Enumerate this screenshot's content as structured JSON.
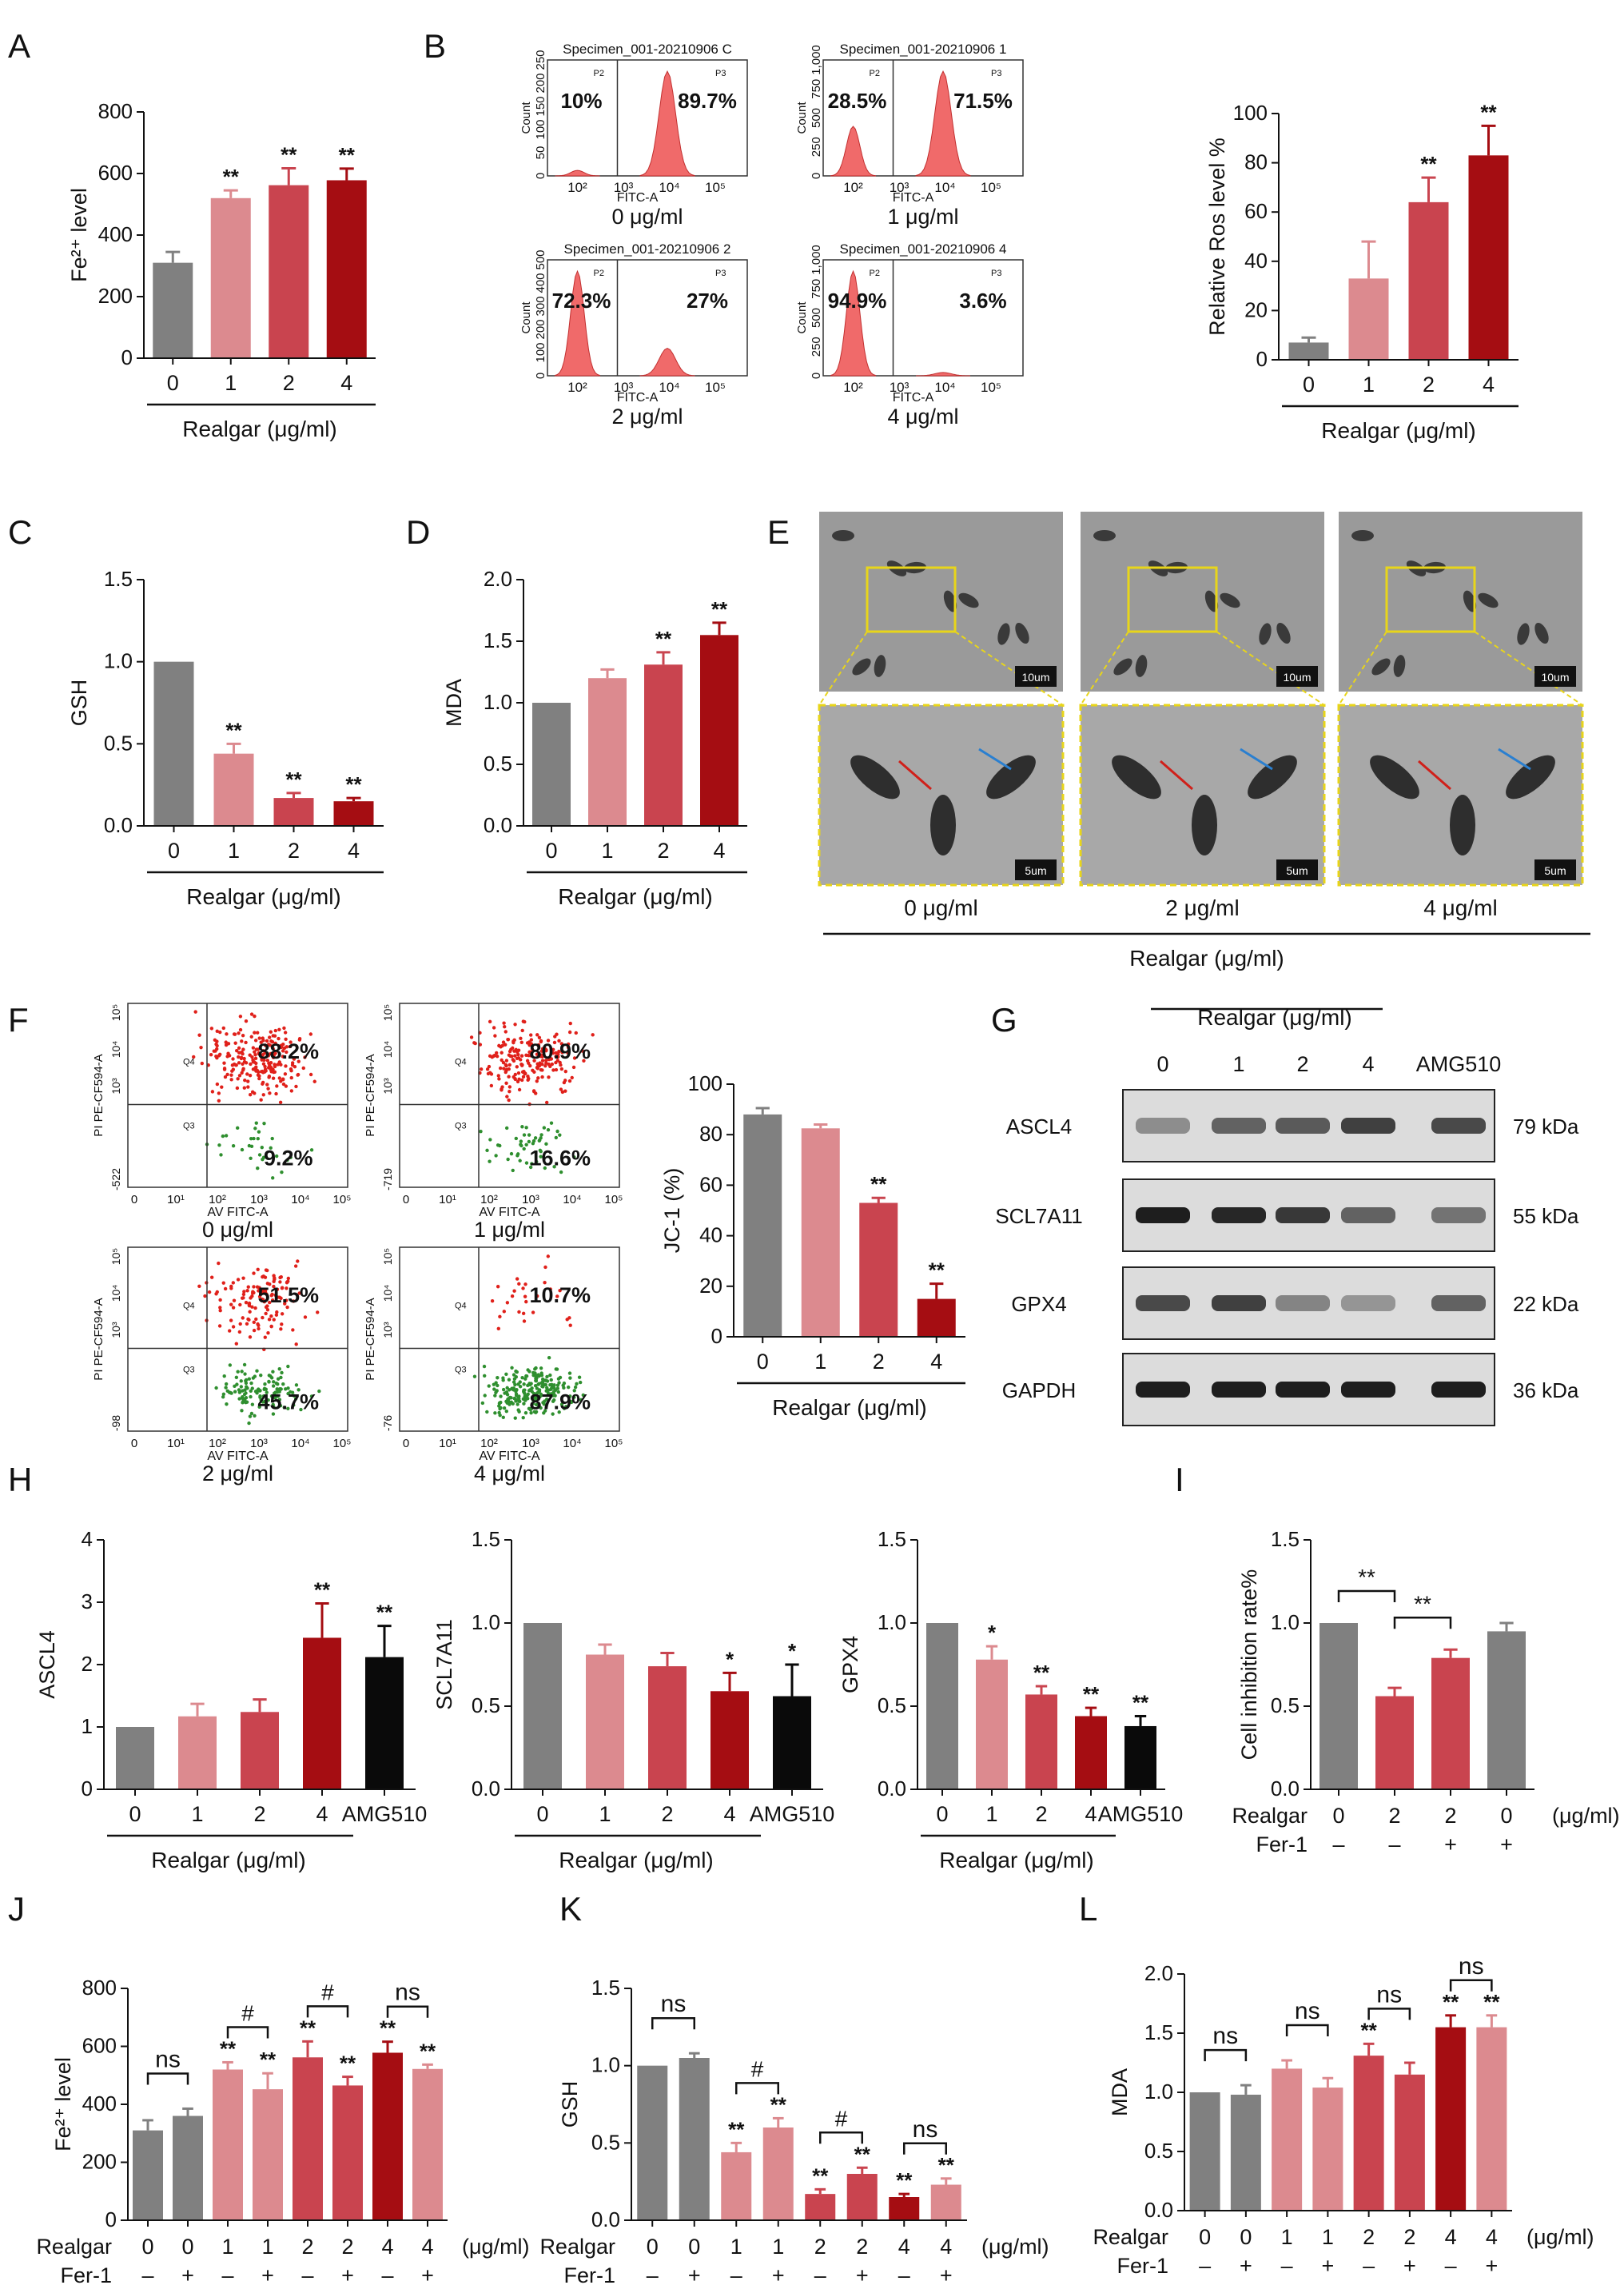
{
  "colors": {
    "c0": "#808080",
    "c1": "#dc8a8f",
    "c2": "#c9444f",
    "c4": "#a50d12",
    "amg": "#0a0a0a",
    "flow": "#f06a6a",
    "red_dot": "#e0201a",
    "green_dot": "#2f8f2f",
    "em_box": "#e8d51a"
  },
  "panel_letters": [
    "A",
    "B",
    "C",
    "D",
    "E",
    "F",
    "G",
    "H",
    "I",
    "J",
    "K",
    "L"
  ],
  "common": {
    "realgar": "Realgar (μg/ml)",
    "realgar_row": "Realgar",
    "fer1_row": "Fer-1",
    "unit": "(μg/ml)",
    "sig2": "**",
    "sig1": "*",
    "hash": "#",
    "ns": "ns",
    "plus": "+",
    "minus": "–"
  },
  "panel_B": {
    "histograms": [
      {
        "specimen": "Specimen_001-20210906 C",
        "caption": "0 μg/ml",
        "left": "10%",
        "right": "89.7%",
        "y_ticks": [
          "0",
          "50",
          "100",
          "150",
          "200",
          "250"
        ],
        "gate_left": "P2",
        "gate_right": "P3",
        "xlabel": "FITC-A",
        "ylabel": "Count",
        "x_ticks": [
          "10²",
          "10³",
          "10⁴",
          "10⁵"
        ]
      },
      {
        "specimen": "Specimen_001-20210906 1",
        "caption": "1 μg/ml",
        "left": "28.5%",
        "right": "71.5%",
        "y_ticks": [
          "0",
          "250",
          "500",
          "750",
          "1,000"
        ],
        "gate_left": "P2",
        "gate_right": "P3",
        "xlabel": "FITC-A",
        "ylabel": "Count",
        "x_ticks": [
          "10²",
          "10³",
          "10⁴",
          "10⁵"
        ]
      },
      {
        "specimen": "Specimen_001-20210906 2",
        "caption": "2 μg/ml",
        "left": "72.3%",
        "right": "27%",
        "y_ticks": [
          "0",
          "100",
          "200",
          "300",
          "400",
          "500"
        ],
        "gate_left": "P2",
        "gate_right": "P3",
        "xlabel": "FITC-A",
        "ylabel": "Count",
        "x_ticks": [
          "10²",
          "10³",
          "10⁴",
          "10⁵"
        ]
      },
      {
        "specimen": "Specimen_001-20210906 4",
        "caption": "4 μg/ml",
        "left": "94.9%",
        "right": "3.6%",
        "y_ticks": [
          "0",
          "250",
          "500",
          "750",
          "1,000"
        ],
        "gate_left": "P2",
        "gate_right": "P3",
        "xlabel": "FITC-A",
        "ylabel": "Count",
        "x_ticks": [
          "10²",
          "10³",
          "10⁴",
          "10⁵"
        ]
      }
    ]
  },
  "panel_E": {
    "captions": [
      "0 μg/ml",
      "2 μg/ml",
      "4 μg/ml"
    ],
    "scale_top": "10um",
    "scale_bottom": "5um"
  },
  "panel_F": {
    "plots": [
      {
        "caption": "0 μg/ml",
        "upper": "88.2%",
        "lower": "9.2%",
        "ymin": "-522",
        "q4": "Q4",
        "q3": "Q3",
        "xlabel": "AV FITC-A",
        "ylabel": "PI PE-CF594-A"
      },
      {
        "caption": "1 μg/ml",
        "upper": "80.9%",
        "lower": "16.6%",
        "ymin": "-719",
        "q4": "Q4",
        "q3": "Q3",
        "xlabel": "AV FITC-A",
        "ylabel": "PI PE-CF594-A"
      },
      {
        "caption": "2 μg/ml",
        "upper": "51.5%",
        "lower": "45.7%",
        "ymin": "-98",
        "q4": "Q4",
        "q3": "Q3",
        "xlabel": "AV FITC-A",
        "ylabel": "PI PE-CF594-A"
      },
      {
        "caption": "4 μg/ml",
        "upper": "10.7%",
        "lower": "87.9%",
        "ymin": "-76",
        "q4": "Q4",
        "q3": "Q3",
        "xlabel": "AV FITC-A",
        "ylabel": "PI PE-CF594-A"
      }
    ],
    "x_ticks": [
      "0",
      "10¹",
      "10²",
      "10³",
      "10⁴",
      "10⁵"
    ],
    "y_ticks": [
      "10³",
      "10⁴",
      "10⁵"
    ]
  },
  "panel_G": {
    "header": "Realgar (μg/ml)",
    "lanes": [
      "0",
      "1",
      "2",
      "4",
      "AMG510"
    ],
    "proteins": [
      {
        "name": "ASCL4",
        "kda": "79 kDa"
      },
      {
        "name": "SCL7A11",
        "kda": "55 kDa"
      },
      {
        "name": "GPX4",
        "kda": "22 kDa"
      },
      {
        "name": "GAPDH",
        "kda": "36 kDa"
      }
    ]
  },
  "chart_data": [
    {
      "panel": "A",
      "type": "bar",
      "categories": [
        "0",
        "1",
        "2",
        "4"
      ],
      "values": [
        310,
        520,
        562,
        578
      ],
      "errors": [
        35,
        25,
        55,
        38
      ],
      "sig": [
        "",
        "**",
        "**",
        "**"
      ],
      "ylabel": "Fe²⁺ level",
      "xlabel": "Realgar (μg/ml)",
      "ylim": [
        0,
        800
      ],
      "yticks": [
        0,
        200,
        400,
        600,
        800
      ]
    },
    {
      "panel": "B",
      "type": "bar",
      "categories": [
        "0",
        "1",
        "2",
        "4"
      ],
      "values": [
        7,
        33,
        64,
        83
      ],
      "errors": [
        2,
        15,
        10,
        12
      ],
      "sig": [
        "",
        "",
        "**",
        "**"
      ],
      "ylabel": "Relative Ros level %",
      "xlabel": "Realgar (μg/ml)",
      "ylim": [
        0,
        100
      ],
      "yticks": [
        0,
        20,
        40,
        60,
        80,
        100
      ]
    },
    {
      "panel": "C",
      "type": "bar",
      "categories": [
        "0",
        "1",
        "2",
        "4"
      ],
      "values": [
        1.0,
        0.44,
        0.17,
        0.15
      ],
      "errors": [
        0,
        0.06,
        0.03,
        0.02
      ],
      "sig": [
        "",
        "**",
        "**",
        "**"
      ],
      "ylabel": "GSH",
      "xlabel": "Realgar (μg/ml)",
      "ylim": [
        0,
        1.5
      ],
      "yticks": [
        0,
        0.5,
        1.0,
        1.5
      ]
    },
    {
      "panel": "D",
      "type": "bar",
      "categories": [
        "0",
        "1",
        "2",
        "4"
      ],
      "values": [
        1.0,
        1.2,
        1.31,
        1.55
      ],
      "errors": [
        0,
        0.07,
        0.1,
        0.1
      ],
      "sig": [
        "",
        "",
        "**",
        "**"
      ],
      "ylabel": "MDA",
      "xlabel": "Realgar (μg/ml)",
      "ylim": [
        0,
        2.0
      ],
      "yticks": [
        0,
        0.5,
        1.0,
        1.5,
        2.0
      ]
    },
    {
      "panel": "F",
      "type": "bar",
      "categories": [
        "0",
        "1",
        "2",
        "4"
      ],
      "values": [
        88,
        82.5,
        53,
        15
      ],
      "errors": [
        2.5,
        1.5,
        2,
        6
      ],
      "sig": [
        "",
        "",
        "**",
        "**"
      ],
      "ylabel": "JC-1 (%)",
      "xlabel": "Realgar (μg/ml)",
      "ylim": [
        0,
        100
      ],
      "yticks": [
        0,
        20,
        40,
        60,
        80,
        100
      ]
    },
    {
      "panel": "H1",
      "type": "bar",
      "categories": [
        "0",
        "1",
        "2",
        "4",
        "AMG510"
      ],
      "values": [
        1.0,
        1.17,
        1.24,
        2.43,
        2.12
      ],
      "errors": [
        0,
        0.2,
        0.2,
        0.55,
        0.5
      ],
      "sig": [
        "",
        "",
        "",
        "**",
        "**"
      ],
      "ylabel": "ASCL4",
      "xlabel": "Realgar (μg/ml)",
      "ylim": [
        0,
        4
      ],
      "yticks": [
        0,
        1,
        2,
        3,
        4
      ]
    },
    {
      "panel": "H2",
      "type": "bar",
      "categories": [
        "0",
        "1",
        "2",
        "4",
        "AMG510"
      ],
      "values": [
        1.0,
        0.81,
        0.74,
        0.59,
        0.56
      ],
      "errors": [
        0,
        0.06,
        0.08,
        0.11,
        0.19
      ],
      "sig": [
        "",
        "",
        "",
        "*",
        "*"
      ],
      "ylabel": "SCL7A11",
      "xlabel": "Realgar (μg/ml)",
      "ylim": [
        0,
        1.5
      ],
      "yticks": [
        0,
        0.5,
        1.0,
        1.5
      ]
    },
    {
      "panel": "H3",
      "type": "bar",
      "categories": [
        "0",
        "1",
        "2",
        "4",
        "AMG510"
      ],
      "values": [
        1.0,
        0.78,
        0.57,
        0.44,
        0.38
      ],
      "errors": [
        0,
        0.08,
        0.05,
        0.05,
        0.06
      ],
      "sig": [
        "",
        "*",
        "**",
        "**",
        "**"
      ],
      "ylabel": "GPX4",
      "xlabel": "Realgar (μg/ml)",
      "ylim": [
        0,
        1.5
      ],
      "yticks": [
        0,
        0.5,
        1.0,
        1.5
      ]
    },
    {
      "panel": "I",
      "type": "bar",
      "realgar": [
        "0",
        "2",
        "2",
        "0"
      ],
      "fer1": [
        "–",
        "–",
        "+",
        "+"
      ],
      "values": [
        1.0,
        0.56,
        0.79,
        0.95
      ],
      "errors": [
        0,
        0.05,
        0.05,
        0.05
      ],
      "brackets": [
        {
          "from": 0,
          "to": 1,
          "label": "**"
        },
        {
          "from": 1,
          "to": 2,
          "label": "**"
        }
      ],
      "ylabel": "Cell inhibition rate%",
      "ylim": [
        0,
        1.5
      ],
      "yticks": [
        0,
        0.5,
        1.0,
        1.5
      ]
    },
    {
      "panel": "J",
      "type": "bar",
      "realgar": [
        "0",
        "0",
        "1",
        "1",
        "2",
        "2",
        "4",
        "4"
      ],
      "fer1": [
        "–",
        "+",
        "–",
        "+",
        "–",
        "+",
        "–",
        "+"
      ],
      "values": [
        310,
        360,
        520,
        452,
        562,
        465,
        578,
        522
      ],
      "errors": [
        35,
        25,
        25,
        55,
        55,
        30,
        38,
        15
      ],
      "sig": [
        "",
        "",
        "**",
        "**",
        "**",
        "**",
        "**",
        "**"
      ],
      "brackets": [
        {
          "from": 0,
          "to": 1,
          "label": "ns"
        },
        {
          "from": 2,
          "to": 3,
          "label": "#"
        },
        {
          "from": 4,
          "to": 5,
          "label": "#"
        },
        {
          "from": 6,
          "to": 7,
          "label": "ns"
        }
      ],
      "ylabel": "Fe²⁺ level",
      "ylim": [
        0,
        800
      ],
      "yticks": [
        0,
        200,
        400,
        600,
        800
      ]
    },
    {
      "panel": "K",
      "type": "bar",
      "realgar": [
        "0",
        "0",
        "1",
        "1",
        "2",
        "2",
        "4",
        "4"
      ],
      "fer1": [
        "–",
        "+",
        "–",
        "+",
        "–",
        "+",
        "–",
        "+"
      ],
      "values": [
        1.0,
        1.05,
        0.44,
        0.6,
        0.17,
        0.3,
        0.15,
        0.23
      ],
      "errors": [
        0,
        0.03,
        0.06,
        0.06,
        0.03,
        0.04,
        0.02,
        0.04
      ],
      "sig": [
        "",
        "",
        "**",
        "**",
        "**",
        "**",
        "**",
        "**"
      ],
      "brackets": [
        {
          "from": 0,
          "to": 1,
          "label": "ns"
        },
        {
          "from": 2,
          "to": 3,
          "label": "#"
        },
        {
          "from": 4,
          "to": 5,
          "label": "#"
        },
        {
          "from": 6,
          "to": 7,
          "label": "ns"
        }
      ],
      "ylabel": "GSH",
      "ylim": [
        0,
        1.5
      ],
      "yticks": [
        0,
        0.5,
        1.0,
        1.5
      ]
    },
    {
      "panel": "L",
      "type": "bar",
      "realgar": [
        "0",
        "0",
        "1",
        "1",
        "2",
        "2",
        "4",
        "4"
      ],
      "fer1": [
        "–",
        "+",
        "–",
        "+",
        "–",
        "+",
        "–",
        "+"
      ],
      "values": [
        1.0,
        0.98,
        1.2,
        1.04,
        1.31,
        1.15,
        1.55,
        1.55
      ],
      "errors": [
        0,
        0.08,
        0.07,
        0.08,
        0.1,
        0.1,
        0.1,
        0.1
      ],
      "sig": [
        "",
        "",
        "",
        "",
        "**",
        "",
        "**",
        "**"
      ],
      "brackets": [
        {
          "from": 0,
          "to": 1,
          "label": "ns"
        },
        {
          "from": 2,
          "to": 3,
          "label": "ns"
        },
        {
          "from": 4,
          "to": 5,
          "label": "ns"
        },
        {
          "from": 6,
          "to": 7,
          "label": "ns"
        }
      ],
      "ylabel": "MDA",
      "ylim": [
        0,
        2.0
      ],
      "yticks": [
        0,
        0.5,
        1.0,
        1.5,
        2.0
      ]
    }
  ]
}
